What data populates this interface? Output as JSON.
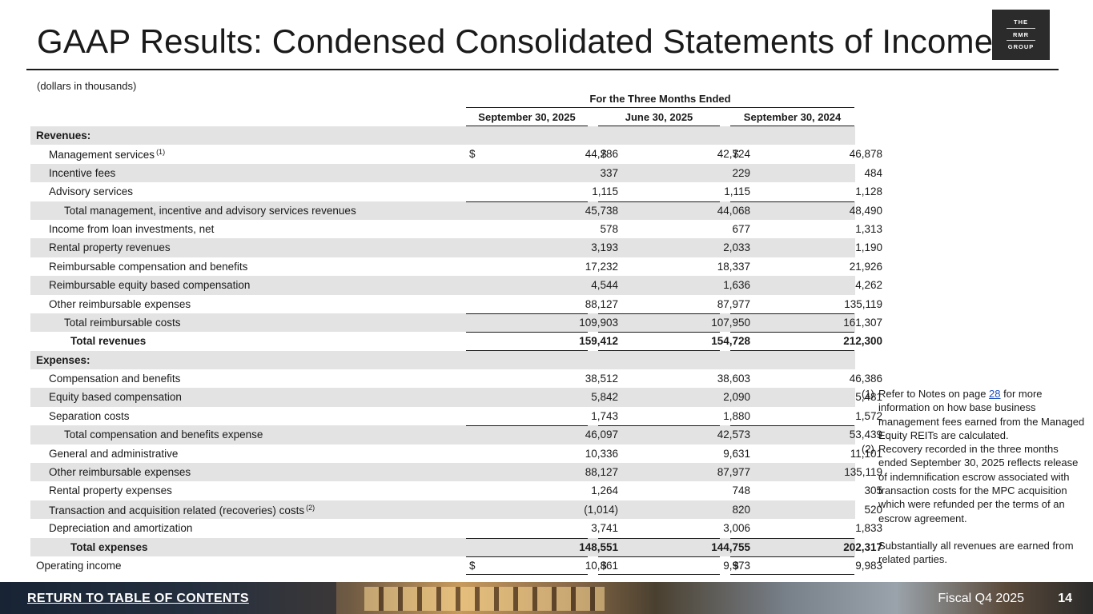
{
  "title": "GAAP Results: Condensed Consolidated Statements of Income",
  "logo": {
    "line1": "THE",
    "line2": "RMR",
    "line3": "GROUP"
  },
  "units": "(dollars in thousands)",
  "period_header": "For the Three Months Ended",
  "columns": [
    "September 30, 2025",
    "June 30, 2025",
    "September 30, 2024"
  ],
  "currency_symbol": "$",
  "rows": [
    {
      "label": "Revenues:",
      "v": [
        "",
        "",
        ""
      ],
      "indent": 0,
      "bold": true,
      "shade": true,
      "section": true
    },
    {
      "label": "Management services",
      "sup": "(1)",
      "v": [
        "44,286",
        "42,724",
        "46,878"
      ],
      "indent": 1,
      "dollar": true
    },
    {
      "label": "Incentive fees",
      "v": [
        "337",
        "229",
        "484"
      ],
      "indent": 1,
      "shade": true
    },
    {
      "label": "Advisory services",
      "v": [
        "1,115",
        "1,115",
        "1,128"
      ],
      "indent": 1
    },
    {
      "label": "Total management, incentive and advisory services revenues",
      "v": [
        "45,738",
        "44,068",
        "48,490"
      ],
      "indent": 2,
      "shade": true,
      "top_rule": true
    },
    {
      "label": "Income from loan investments, net",
      "v": [
        "578",
        "677",
        "1,313"
      ],
      "indent": 1
    },
    {
      "label": "Rental property revenues",
      "v": [
        "3,193",
        "2,033",
        "1,190"
      ],
      "indent": 1,
      "shade": true
    },
    {
      "label": "Reimbursable compensation and benefits",
      "v": [
        "17,232",
        "18,337",
        "21,926"
      ],
      "indent": 1
    },
    {
      "label": "Reimbursable equity based compensation",
      "v": [
        "4,544",
        "1,636",
        "4,262"
      ],
      "indent": 1,
      "shade": true
    },
    {
      "label": "Other reimbursable expenses",
      "v": [
        "88,127",
        "87,977",
        "135,119"
      ],
      "indent": 1
    },
    {
      "label": "Total reimbursable costs",
      "v": [
        "109,903",
        "107,950",
        "161,307"
      ],
      "indent": 2,
      "shade": true,
      "top_rule": true
    },
    {
      "label": "Total revenues",
      "v": [
        "159,412",
        "154,728",
        "212,300"
      ],
      "indent": 3,
      "bold": true,
      "top_rule": true,
      "bottom_rule": true
    },
    {
      "label": "Expenses:",
      "v": [
        "",
        "",
        ""
      ],
      "indent": 0,
      "bold": true,
      "shade": true,
      "section": true
    },
    {
      "label": "Compensation and benefits",
      "v": [
        "38,512",
        "38,603",
        "46,386"
      ],
      "indent": 1
    },
    {
      "label": "Equity based compensation",
      "v": [
        "5,842",
        "2,090",
        "5,481"
      ],
      "indent": 1,
      "shade": true
    },
    {
      "label": "Separation costs",
      "v": [
        "1,743",
        "1,880",
        "1,572"
      ],
      "indent": 1
    },
    {
      "label": "Total compensation and benefits expense",
      "v": [
        "46,097",
        "42,573",
        "53,439"
      ],
      "indent": 2,
      "shade": true,
      "top_rule": true
    },
    {
      "label": "General and administrative",
      "v": [
        "10,336",
        "9,631",
        "11,101"
      ],
      "indent": 1
    },
    {
      "label": "Other reimbursable expenses",
      "v": [
        "88,127",
        "87,977",
        "135,119"
      ],
      "indent": 1,
      "shade": true
    },
    {
      "label": "Rental property expenses",
      "v": [
        "1,264",
        "748",
        "305"
      ],
      "indent": 1
    },
    {
      "label": "Transaction and acquisition related (recoveries) costs",
      "sup": "(2)",
      "v": [
        "(1,014)",
        "820",
        "520"
      ],
      "indent": 1,
      "shade": true
    },
    {
      "label": "Depreciation and amortization",
      "v": [
        "3,741",
        "3,006",
        "1,833"
      ],
      "indent": 1
    },
    {
      "label": "Total expenses",
      "v": [
        "148,551",
        "144,755",
        "202,317"
      ],
      "indent": 3,
      "bold": true,
      "shade": true,
      "top_rule": true
    },
    {
      "label": "Operating income",
      "v": [
        "10,861",
        "9,973",
        "9,983"
      ],
      "indent": 0,
      "dollar": true,
      "top_rule": true,
      "bottom_rule": true
    }
  ],
  "notes": {
    "note1_num": "(1)",
    "note1_pre": "Refer to Notes on page ",
    "note1_link": "28",
    "note1_post": " for more information on how base business management fees earned from the Managed Equity REITs are calculated.",
    "note2_num": "(2)",
    "note2_text": "Recovery recorded in the three months ended September 30, 2025 reflects release of indemnification escrow associated with transaction costs for the MPC acquisition which were refunded per the terms of an escrow agreement.",
    "extra": "Substantially all revenues are earned from related parties."
  },
  "footer": {
    "return_link": "RETURN TO TABLE OF CONTENTS",
    "fiscal": "Fiscal Q4 2025",
    "page": "14"
  }
}
